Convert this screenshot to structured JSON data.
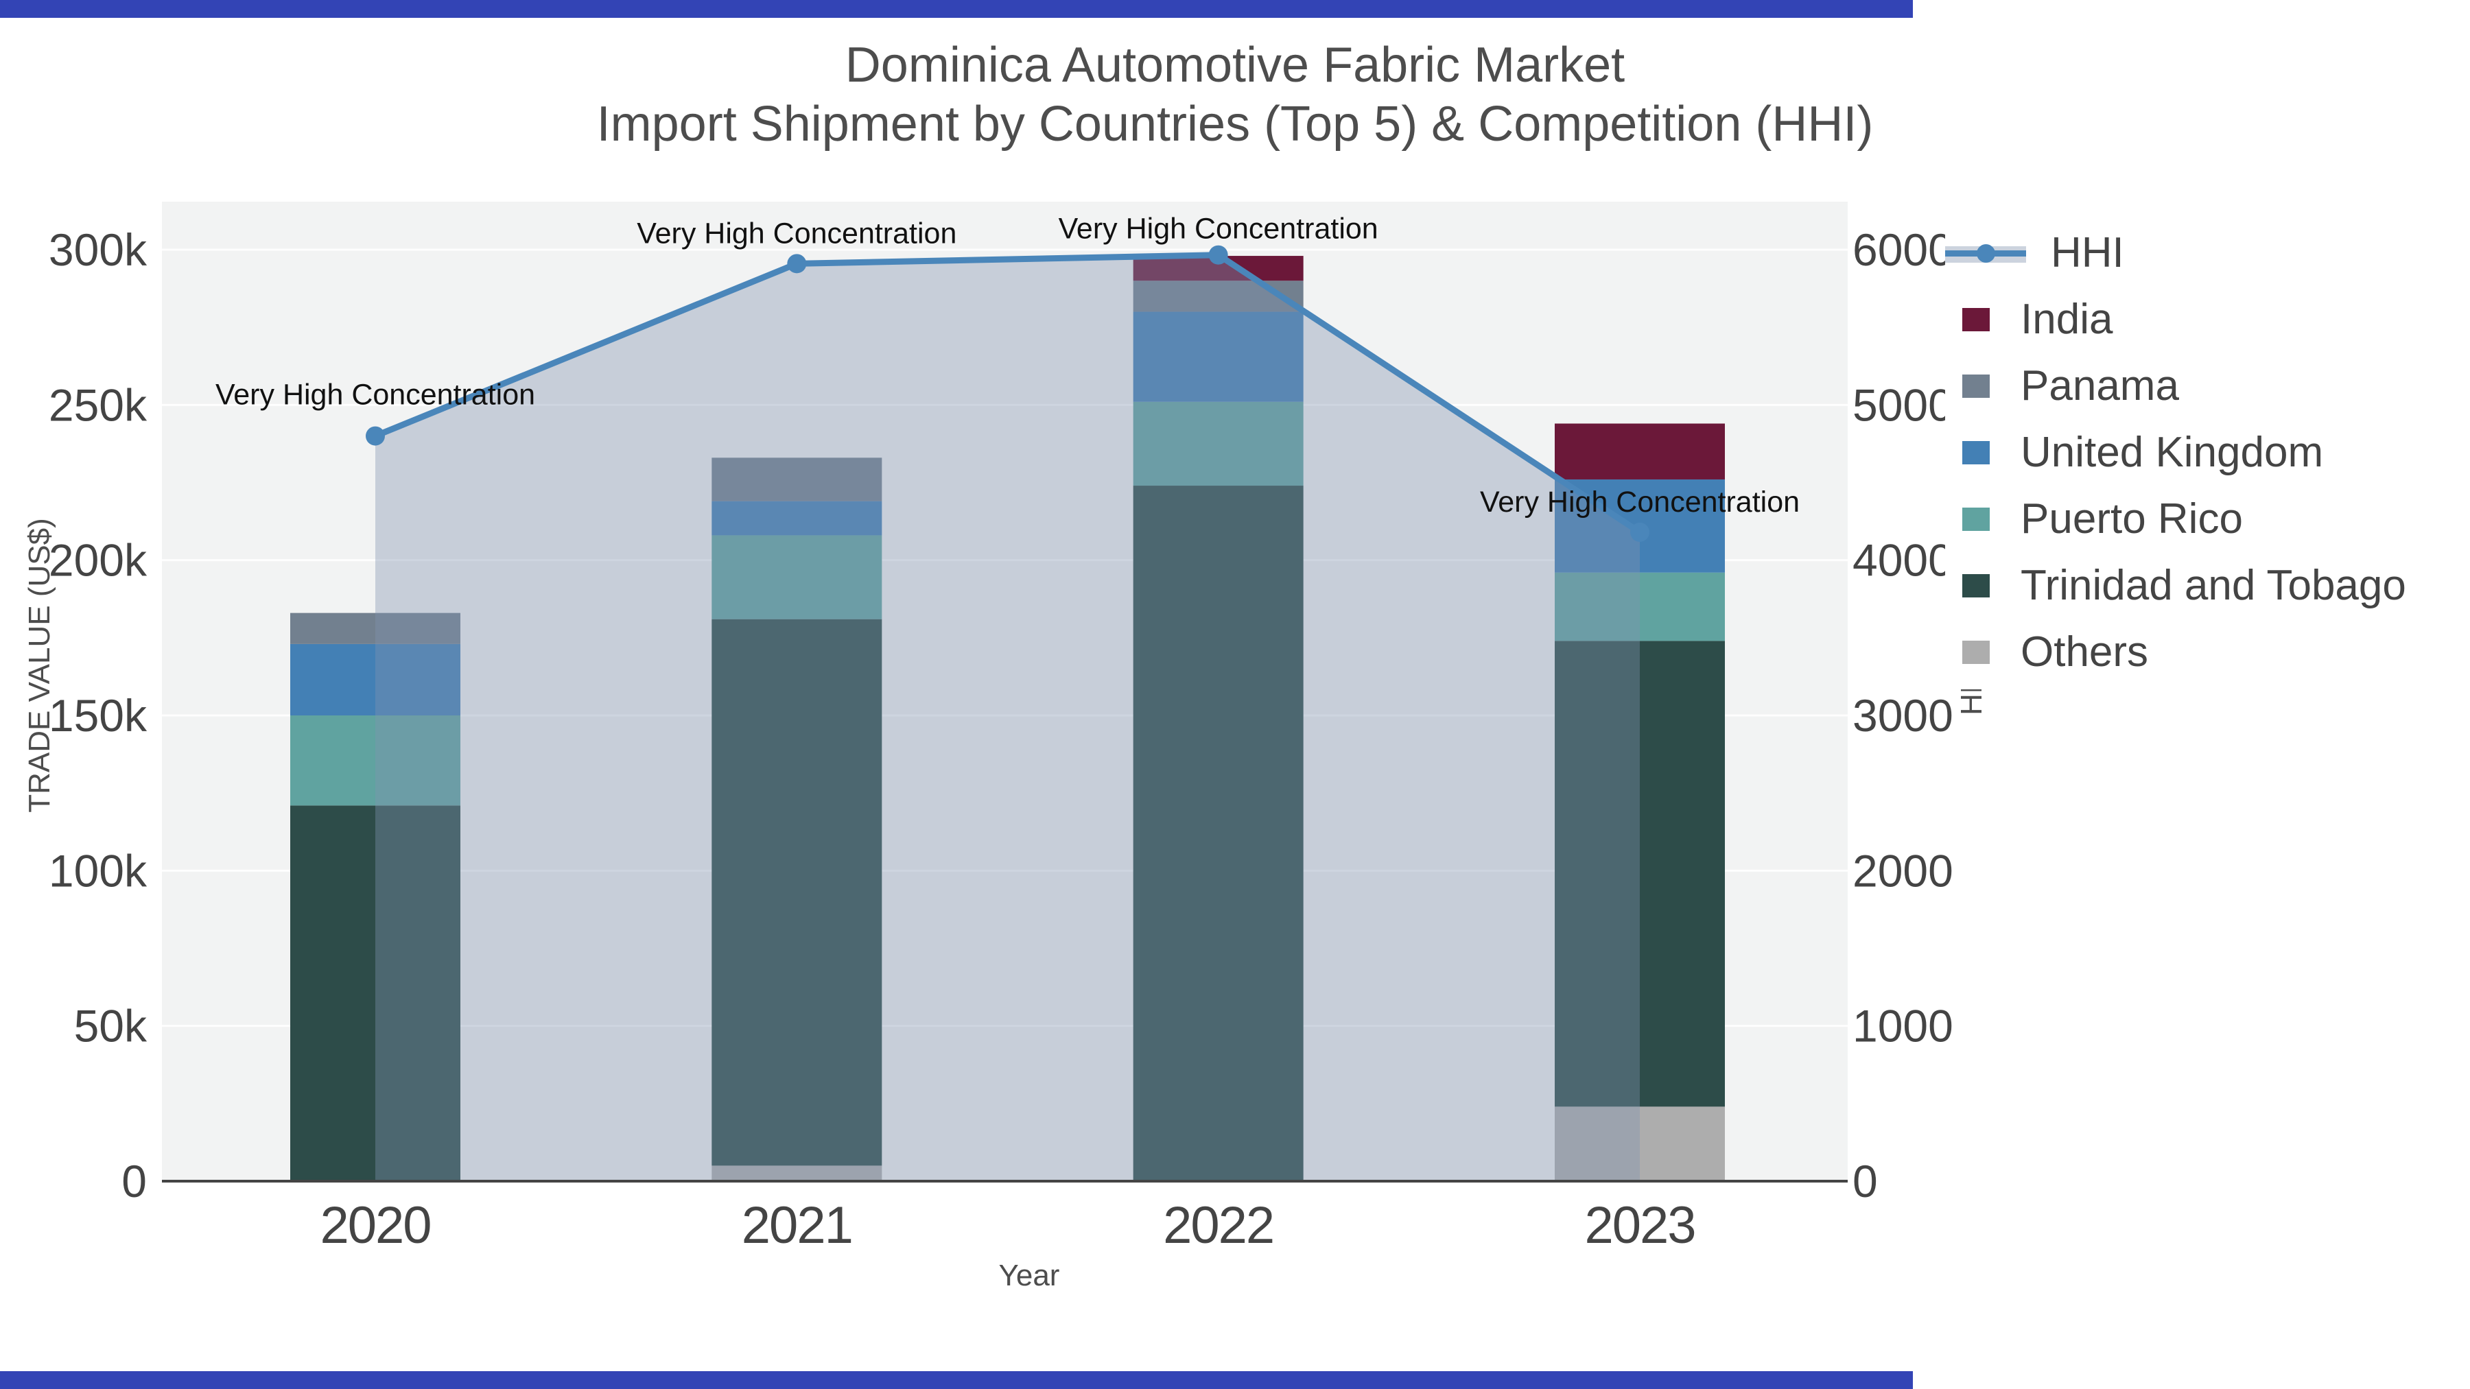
{
  "title": {
    "line1": "Dominica Automotive Fabric Market",
    "line2": "Import Shipment by Countries (Top 5) & Competition (HHI)"
  },
  "axes": {
    "x_title": "Year",
    "y_left_title": "TRADE VALUE (US$)",
    "y_right_title": "HHI",
    "x_tick_labels": [
      "2020",
      "2021",
      "2022",
      "2023"
    ],
    "y_left_ticks": [
      {
        "v": 0,
        "label": "0"
      },
      {
        "v": 50000,
        "label": "50k"
      },
      {
        "v": 100000,
        "label": "100k"
      },
      {
        "v": 150000,
        "label": "150k"
      },
      {
        "v": 200000,
        "label": "200k"
      },
      {
        "v": 250000,
        "label": "250k"
      },
      {
        "v": 300000,
        "label": "300k"
      }
    ],
    "y_right_ticks": [
      {
        "v": 0,
        "label": "0"
      },
      {
        "v": 1000,
        "label": "1000"
      },
      {
        "v": 2000,
        "label": "2000"
      },
      {
        "v": 3000,
        "label": "3000"
      },
      {
        "v": 4000,
        "label": "4000"
      },
      {
        "v": 5000,
        "label": "5000"
      },
      {
        "v": 6000,
        "label": "6000"
      }
    ]
  },
  "legend": {
    "items": [
      {
        "label": "HHI",
        "type": "line",
        "color": "#4a86ba",
        "band_color": "#ccd3de"
      },
      {
        "label": "India",
        "type": "swatch",
        "color": "#6b1839"
      },
      {
        "label": "Panama",
        "type": "swatch",
        "color": "#72808f"
      },
      {
        "label": "United Kingdom",
        "type": "swatch",
        "color": "#4380b5"
      },
      {
        "label": "Puerto Rico",
        "type": "swatch",
        "color": "#60a3a0"
      },
      {
        "label": "Trinidad and Tobago",
        "type": "swatch",
        "color": "#2d4c49"
      },
      {
        "label": "Others",
        "type": "swatch",
        "color": "#adadad"
      }
    ]
  },
  "chart_data": {
    "type": "bar",
    "subtype": "stacked-bars-with-line-overlay",
    "categories": [
      "2020",
      "2021",
      "2022",
      "2023"
    ],
    "bar_unit": "US$",
    "series": [
      {
        "name": "Others",
        "color": "#adadad",
        "values": [
          0,
          5000,
          0,
          24000
        ]
      },
      {
        "name": "Trinidad and Tobago",
        "color": "#2d4c49",
        "values": [
          121000,
          176000,
          224000,
          150000
        ]
      },
      {
        "name": "Puerto Rico",
        "color": "#60a3a0",
        "values": [
          29000,
          27000,
          27000,
          22000
        ]
      },
      {
        "name": "United Kingdom",
        "color": "#4380b5",
        "values": [
          23000,
          11000,
          29000,
          30000
        ]
      },
      {
        "name": "Panama",
        "color": "#72808f",
        "values": [
          10000,
          14000,
          10000,
          0
        ]
      },
      {
        "name": "India",
        "color": "#6b1839",
        "values": [
          0,
          0,
          8000,
          18000
        ]
      }
    ],
    "stack_note": "series listed bottom-to-top; totals per year: 183000, 233000, 298000, 244000",
    "line_series": {
      "name": "HHI",
      "color": "#4a86ba",
      "fill_color": "rgba(130,146,175,0.38)",
      "values": [
        4800,
        5910,
        5966,
        4180
      ],
      "annotations": [
        {
          "text": "Very High Concentration",
          "dy": 46
        },
        {
          "text": "Very High Concentration",
          "dy": 30
        },
        {
          "text": "Very High Concentration",
          "dy": 24
        },
        {
          "text": "Very High Concentration",
          "dy": 30
        }
      ]
    },
    "ylim_left": [
      0,
      300000
    ],
    "ylim_right": [
      0,
      6000
    ],
    "grid": true,
    "legend_position": "right",
    "plot_bg": "#f2f3f3",
    "grid_color": "rgba(255,255,255,0.9)",
    "axis_line_color": "#444444",
    "tick_color": "#444444",
    "annotation_color": "#111111"
  },
  "chrome": {
    "bar_color": "#3344b5"
  }
}
